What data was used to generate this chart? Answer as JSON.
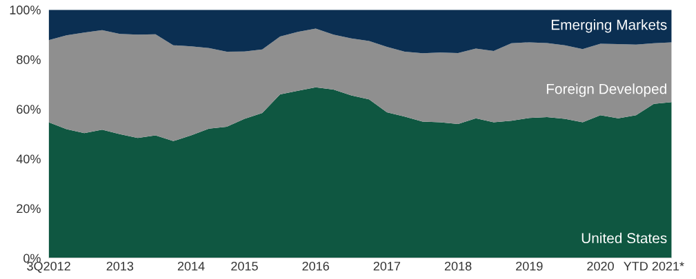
{
  "chart_data": {
    "type": "area",
    "stacked": true,
    "categories": [
      "3Q2012",
      null,
      null,
      null,
      "2013",
      null,
      null,
      null,
      "2014",
      null,
      null,
      "2015",
      null,
      null,
      null,
      "2016",
      null,
      null,
      null,
      "2017",
      null,
      null,
      null,
      "2018",
      null,
      null,
      null,
      "2019",
      null,
      null,
      null,
      "2020",
      null,
      null,
      "YTD 2021*",
      null
    ],
    "series": [
      {
        "name": "United States",
        "color": "#0f5741",
        "values": [
          54.7,
          51.9,
          50.3,
          51.7,
          49.9,
          48.4,
          49.4,
          47.1,
          49.4,
          52.1,
          52.9,
          56.1,
          58.4,
          65.9,
          67.4,
          68.8,
          67.9,
          65.5,
          63.9,
          58.7,
          57.0,
          55.0,
          54.7,
          54.0,
          56.3,
          54.7,
          55.3,
          56.4,
          56.8,
          56.1,
          54.7,
          57.5,
          56.3,
          57.5,
          62.1,
          62.8
        ]
      },
      {
        "name": "Foreign Developed",
        "color": "#8f8f8f",
        "values": [
          33.1,
          37.8,
          40.5,
          40.1,
          40.4,
          41.6,
          40.7,
          38.6,
          35.9,
          32.5,
          30.2,
          27.1,
          25.6,
          23.3,
          23.7,
          23.6,
          22.1,
          23.0,
          23.5,
          26.4,
          26.1,
          27.5,
          28.1,
          28.6,
          28.1,
          28.7,
          31.2,
          30.5,
          29.8,
          29.6,
          29.5,
          28.8,
          29.9,
          28.5,
          24.4,
          24.1
        ]
      },
      {
        "name": "Emerging Markets",
        "color": "#0b2f52",
        "values": [
          12.2,
          10.3,
          9.2,
          8.2,
          9.7,
          10.0,
          9.9,
          14.3,
          14.7,
          15.4,
          16.9,
          16.8,
          16.0,
          10.8,
          8.9,
          7.6,
          10.0,
          11.5,
          12.6,
          14.9,
          16.9,
          17.5,
          17.2,
          17.4,
          15.6,
          16.6,
          13.5,
          13.1,
          13.4,
          14.3,
          15.8,
          13.7,
          13.8,
          14.0,
          13.5,
          13.1
        ]
      }
    ],
    "ylim": [
      0,
      100
    ],
    "yticks": [
      {
        "value": 0,
        "label": "0%"
      },
      {
        "value": 20,
        "label": "20%"
      },
      {
        "value": 40,
        "label": "40%"
      },
      {
        "value": 60,
        "label": "60%"
      },
      {
        "value": 80,
        "label": "80%"
      },
      {
        "value": 100,
        "label": "100%"
      }
    ],
    "grid": false,
    "legend": false
  }
}
